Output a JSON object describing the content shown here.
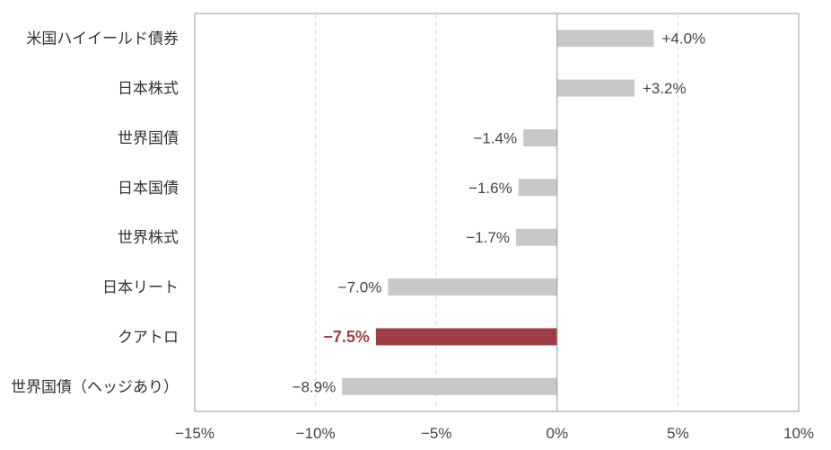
{
  "chart_data": {
    "type": "bar",
    "orientation": "horizontal",
    "categories": [
      "米国ハイイールド債券",
      "日本株式",
      "世界国債",
      "日本国債",
      "世界株式",
      "日本リート",
      "クアトロ",
      "世界国債（ヘッジあり）"
    ],
    "values": [
      4.0,
      3.2,
      -1.4,
      -1.6,
      -1.7,
      -7.0,
      -7.5,
      -8.9
    ],
    "value_labels": [
      "+4.0%",
      "+3.2%",
      "−1.4%",
      "−1.6%",
      "−1.7%",
      "−7.0%",
      "−7.5%",
      "−8.9%"
    ],
    "highlight_category": "クアトロ",
    "xlim": [
      -15,
      10
    ],
    "xticks": [
      -15,
      -10,
      -5,
      0,
      5,
      10
    ],
    "xtick_labels": [
      "−15%",
      "−10%",
      "−5%",
      "0%",
      "5%",
      "10%"
    ],
    "title": "",
    "xlabel": "",
    "ylabel": "",
    "grid": "vertical-dashed",
    "legend": "none",
    "colors": {
      "bar": "#c8c8c8",
      "highlight": "#9e3d44",
      "grid": "#dddddd",
      "axis": "#999999"
    }
  }
}
